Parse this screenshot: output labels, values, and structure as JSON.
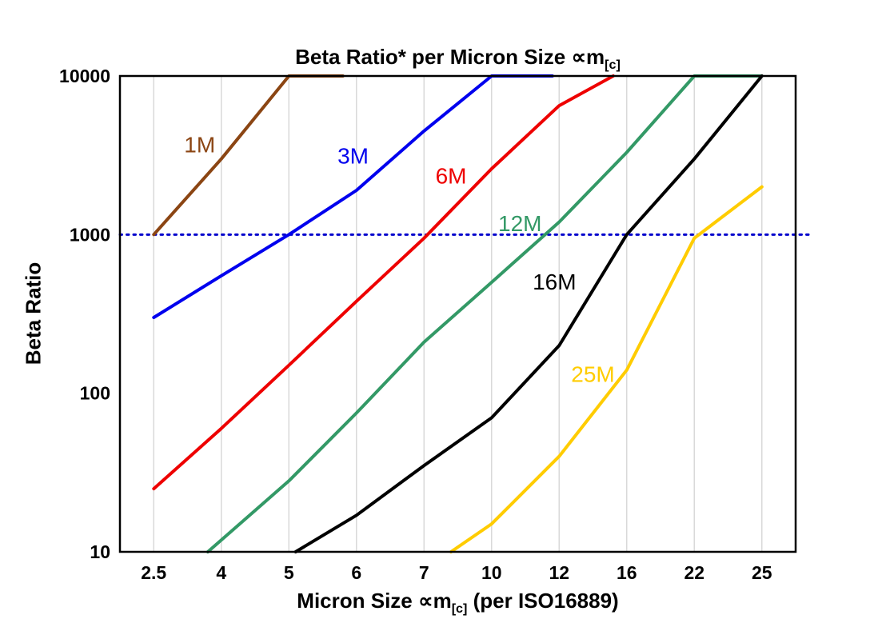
{
  "page": {
    "background": "#ffffff"
  },
  "chart_data": {
    "type": "line",
    "title": "Beta Ratio* per Micron Size ∝m[c]",
    "title_pre": "Beta Ratio* per Micron Size ∝m",
    "title_sub": "[c]",
    "ylabel": "Beta Ratio",
    "xlabel_pre": "Micron Size ∝m",
    "xlabel_sub": "[c]",
    "xlabel_post": " (per ISO16889)",
    "yscale": "log",
    "ylim": [
      10,
      10000
    ],
    "y_ticks": [
      "10",
      "100",
      "1000",
      "10000"
    ],
    "x_ticks": [
      "2.5",
      "4",
      "5",
      "6",
      "7",
      "10",
      "12",
      "16",
      "22",
      "25"
    ],
    "grid": {
      "vertical": true,
      "color": "#d9d9d9"
    },
    "frame_color": "#000000",
    "reference_line": {
      "value": 1000,
      "style": "dotted",
      "color": "#0000cc"
    },
    "series": [
      {
        "name": "1M",
        "color": "#8B4513",
        "points": [
          [
            0,
            1000
          ],
          [
            1,
            3000
          ],
          [
            2,
            10000
          ],
          [
            2.8,
            10000
          ]
        ]
      },
      {
        "name": "3M",
        "color": "#0000EE",
        "points": [
          [
            0,
            300
          ],
          [
            1,
            550
          ],
          [
            2,
            1000
          ],
          [
            3,
            1900
          ],
          [
            4,
            4500
          ],
          [
            5,
            10000
          ],
          [
            5.9,
            10000
          ]
        ]
      },
      {
        "name": "6M",
        "color": "#EE0000",
        "points": [
          [
            0,
            25
          ],
          [
            1,
            60
          ],
          [
            2,
            150
          ],
          [
            3,
            380
          ],
          [
            4,
            950
          ],
          [
            5,
            2600
          ],
          [
            6,
            6500
          ],
          [
            6.8,
            10000
          ]
        ]
      },
      {
        "name": "12M",
        "color": "#339966",
        "points": [
          [
            0.8,
            10
          ],
          [
            2,
            28
          ],
          [
            3,
            75
          ],
          [
            4,
            210
          ],
          [
            5,
            500
          ],
          [
            6,
            1200
          ],
          [
            7,
            3300
          ],
          [
            8,
            10000
          ],
          [
            9,
            10000
          ]
        ]
      },
      {
        "name": "16M",
        "color": "#000000",
        "points": [
          [
            2.1,
            10
          ],
          [
            3,
            17
          ],
          [
            4,
            35
          ],
          [
            5,
            70
          ],
          [
            6,
            200
          ],
          [
            7,
            1000
          ],
          [
            8,
            3000
          ],
          [
            9,
            10000
          ]
        ]
      },
      {
        "name": "25M",
        "color": "#FFCC00",
        "points": [
          [
            4.4,
            10
          ],
          [
            5,
            15
          ],
          [
            6,
            40
          ],
          [
            7,
            140
          ],
          [
            8,
            950
          ],
          [
            9,
            2000
          ]
        ]
      }
    ],
    "annotations": [
      {
        "text": "1M",
        "x": 0.68,
        "y": 3300,
        "color": "#8B4513"
      },
      {
        "text": "3M",
        "x": 2.95,
        "y": 2800,
        "color": "#0000EE"
      },
      {
        "text": "6M",
        "x": 4.4,
        "y": 2100,
        "color": "#EE0000"
      },
      {
        "text": "12M",
        "x": 5.42,
        "y": 1050,
        "color": "#339966"
      },
      {
        "text": "16M",
        "x": 5.93,
        "y": 450,
        "color": "#000000"
      },
      {
        "text": "25M",
        "x": 6.5,
        "y": 118,
        "color": "#FFCC00"
      }
    ]
  }
}
